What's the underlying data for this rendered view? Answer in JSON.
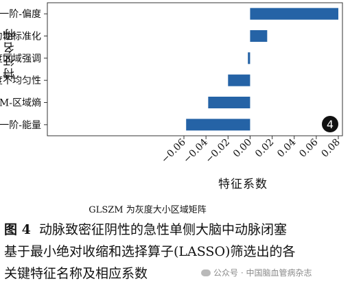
{
  "figure": {
    "caption_label": "图 4",
    "caption_lines": [
      "动脉致密征阴性的急性单侧大脑中动脉闭塞",
      "基于最小绝对收缩和选择算子(LASSO)筛选出的各",
      "关键特征名称及相应系数"
    ],
    "footnote": "GLSZM 为灰度大小区域矩阵",
    "watermark": "公众号 · 中国脑血管病杂志",
    "watermark_icon": "wechat-icon"
  },
  "chart_data": {
    "type": "bar",
    "orientation": "horizontal",
    "categories": [
      "一阶-偏度",
      "GLSZM-尺寸区非均匀性标准化",
      "GLSZM-低灰度区域强调",
      "GLSZM-灰度不均匀性",
      "GLSZM-区域熵",
      "一阶-能量"
    ],
    "values": [
      0.08,
      0.0155,
      -0.002,
      -0.02,
      -0.038,
      -0.058
    ],
    "title": "",
    "xlabel": "特征系数",
    "ylabel": "特征名称",
    "xlim": [
      -0.06,
      0.08
    ],
    "xticks": [
      -0.06,
      -0.04,
      -0.02,
      0.0,
      0.02,
      0.04,
      0.06,
      0.08
    ],
    "xtick_labels": [
      "−0.06",
      "−0.04",
      "−0.02",
      "0.00",
      "0.02",
      "0.04",
      "0.06",
      "0.08"
    ],
    "panel_badge": "4",
    "bar_color": "#2563a6",
    "grid": false
  }
}
